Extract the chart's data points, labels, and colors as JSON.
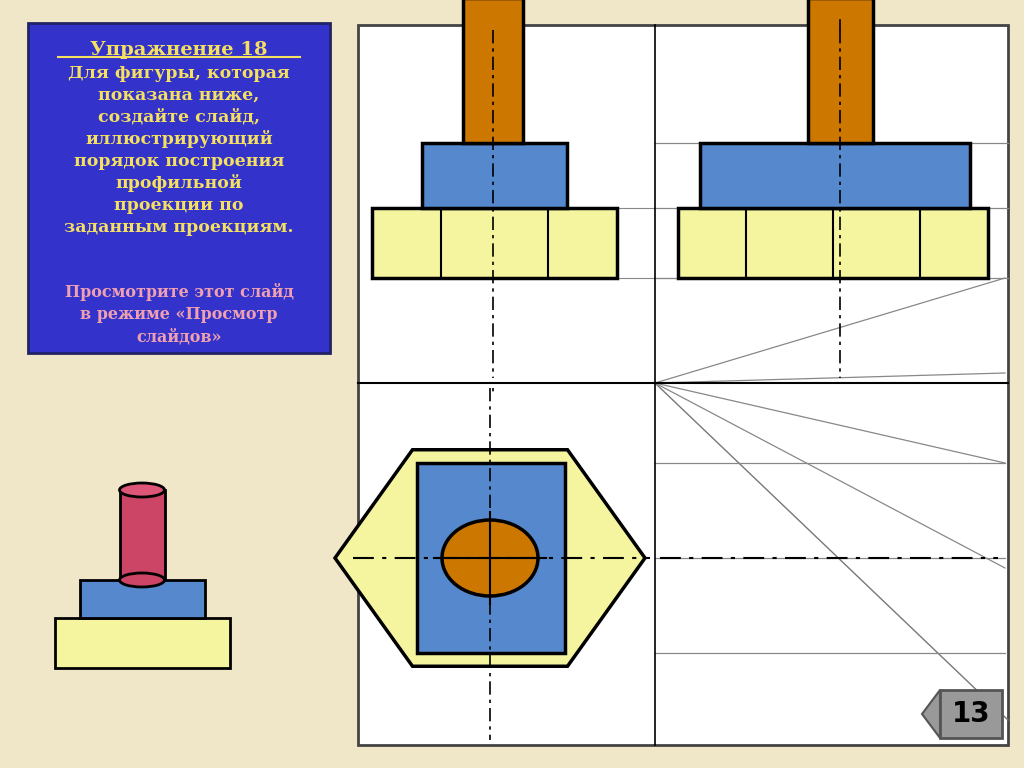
{
  "bg_color": "#f0e6c8",
  "white_area": "#ffffff",
  "blue_box_bg": "#3333cc",
  "text_yellow": "#f5e060",
  "text_pink": "#f0a0b0",
  "color_orange": "#cc7700",
  "color_blue": "#5588cc",
  "color_yellow_light": "#f5f5a0",
  "title_text": "Упражнение 18",
  "body_text": "Для фигуры, которая\nпоказана ниже,\nсоздайте слайд,\nиллюстрирующий\nпорядок построения\nпрофильной\nпроекции по\nзаданным проекциям.",
  "body_text2": "Просмотрите этот слайд\nв режиме «Просмотр\nслайдов»",
  "lw_shape": 2.5,
  "lw_line": 1.2,
  "lw_thin": 0.8
}
